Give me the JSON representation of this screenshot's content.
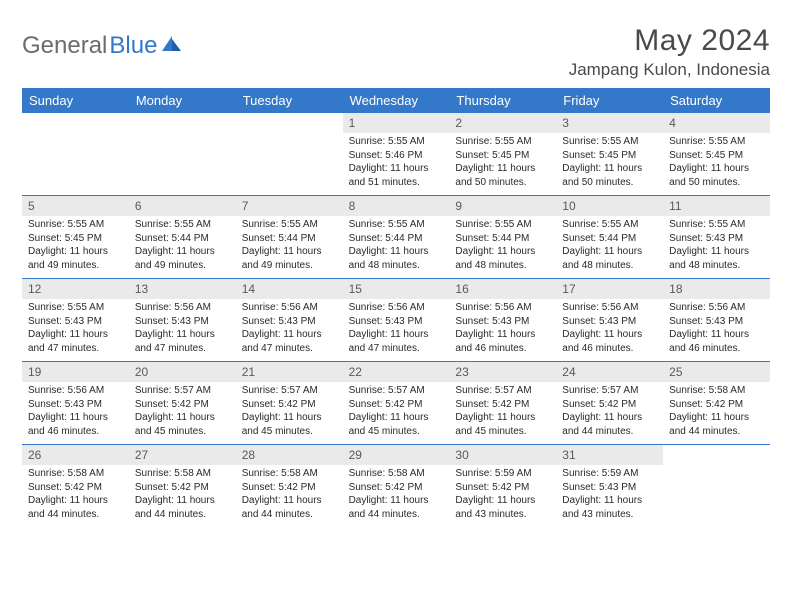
{
  "brand": {
    "word1": "General",
    "word2": "Blue"
  },
  "title": "May 2024",
  "location": "Jampang Kulon, Indonesia",
  "colors": {
    "header_bg": "#3478c9",
    "header_text": "#ffffff",
    "daynum_bg": "#eaeaea",
    "daynum_text": "#5a5a5a",
    "border": "#3478c9",
    "body_text": "#2a2a2a",
    "title_text": "#4a4a4a",
    "logo_gray": "#6b6b6b",
    "logo_blue": "#3478c9",
    "background": "#ffffff"
  },
  "typography": {
    "month_title_fontsize": 30,
    "location_fontsize": 17,
    "day_header_fontsize": 13,
    "daynum_fontsize": 12,
    "detail_fontsize": 10,
    "logo_fontsize": 24
  },
  "dayNames": [
    "Sunday",
    "Monday",
    "Tuesday",
    "Wednesday",
    "Thursday",
    "Friday",
    "Saturday"
  ],
  "weeks": [
    [
      {
        "empty": true
      },
      {
        "empty": true
      },
      {
        "empty": true
      },
      {
        "day": "1",
        "sunrise": "Sunrise: 5:55 AM",
        "sunset": "Sunset: 5:46 PM",
        "daylight": "Daylight: 11 hours and 51 minutes."
      },
      {
        "day": "2",
        "sunrise": "Sunrise: 5:55 AM",
        "sunset": "Sunset: 5:45 PM",
        "daylight": "Daylight: 11 hours and 50 minutes."
      },
      {
        "day": "3",
        "sunrise": "Sunrise: 5:55 AM",
        "sunset": "Sunset: 5:45 PM",
        "daylight": "Daylight: 11 hours and 50 minutes."
      },
      {
        "day": "4",
        "sunrise": "Sunrise: 5:55 AM",
        "sunset": "Sunset: 5:45 PM",
        "daylight": "Daylight: 11 hours and 50 minutes."
      }
    ],
    [
      {
        "day": "5",
        "sunrise": "Sunrise: 5:55 AM",
        "sunset": "Sunset: 5:45 PM",
        "daylight": "Daylight: 11 hours and 49 minutes."
      },
      {
        "day": "6",
        "sunrise": "Sunrise: 5:55 AM",
        "sunset": "Sunset: 5:44 PM",
        "daylight": "Daylight: 11 hours and 49 minutes."
      },
      {
        "day": "7",
        "sunrise": "Sunrise: 5:55 AM",
        "sunset": "Sunset: 5:44 PM",
        "daylight": "Daylight: 11 hours and 49 minutes."
      },
      {
        "day": "8",
        "sunrise": "Sunrise: 5:55 AM",
        "sunset": "Sunset: 5:44 PM",
        "daylight": "Daylight: 11 hours and 48 minutes."
      },
      {
        "day": "9",
        "sunrise": "Sunrise: 5:55 AM",
        "sunset": "Sunset: 5:44 PM",
        "daylight": "Daylight: 11 hours and 48 minutes."
      },
      {
        "day": "10",
        "sunrise": "Sunrise: 5:55 AM",
        "sunset": "Sunset: 5:44 PM",
        "daylight": "Daylight: 11 hours and 48 minutes."
      },
      {
        "day": "11",
        "sunrise": "Sunrise: 5:55 AM",
        "sunset": "Sunset: 5:43 PM",
        "daylight": "Daylight: 11 hours and 48 minutes."
      }
    ],
    [
      {
        "day": "12",
        "sunrise": "Sunrise: 5:55 AM",
        "sunset": "Sunset: 5:43 PM",
        "daylight": "Daylight: 11 hours and 47 minutes."
      },
      {
        "day": "13",
        "sunrise": "Sunrise: 5:56 AM",
        "sunset": "Sunset: 5:43 PM",
        "daylight": "Daylight: 11 hours and 47 minutes."
      },
      {
        "day": "14",
        "sunrise": "Sunrise: 5:56 AM",
        "sunset": "Sunset: 5:43 PM",
        "daylight": "Daylight: 11 hours and 47 minutes."
      },
      {
        "day": "15",
        "sunrise": "Sunrise: 5:56 AM",
        "sunset": "Sunset: 5:43 PM",
        "daylight": "Daylight: 11 hours and 47 minutes."
      },
      {
        "day": "16",
        "sunrise": "Sunrise: 5:56 AM",
        "sunset": "Sunset: 5:43 PM",
        "daylight": "Daylight: 11 hours and 46 minutes."
      },
      {
        "day": "17",
        "sunrise": "Sunrise: 5:56 AM",
        "sunset": "Sunset: 5:43 PM",
        "daylight": "Daylight: 11 hours and 46 minutes."
      },
      {
        "day": "18",
        "sunrise": "Sunrise: 5:56 AM",
        "sunset": "Sunset: 5:43 PM",
        "daylight": "Daylight: 11 hours and 46 minutes."
      }
    ],
    [
      {
        "day": "19",
        "sunrise": "Sunrise: 5:56 AM",
        "sunset": "Sunset: 5:43 PM",
        "daylight": "Daylight: 11 hours and 46 minutes."
      },
      {
        "day": "20",
        "sunrise": "Sunrise: 5:57 AM",
        "sunset": "Sunset: 5:42 PM",
        "daylight": "Daylight: 11 hours and 45 minutes."
      },
      {
        "day": "21",
        "sunrise": "Sunrise: 5:57 AM",
        "sunset": "Sunset: 5:42 PM",
        "daylight": "Daylight: 11 hours and 45 minutes."
      },
      {
        "day": "22",
        "sunrise": "Sunrise: 5:57 AM",
        "sunset": "Sunset: 5:42 PM",
        "daylight": "Daylight: 11 hours and 45 minutes."
      },
      {
        "day": "23",
        "sunrise": "Sunrise: 5:57 AM",
        "sunset": "Sunset: 5:42 PM",
        "daylight": "Daylight: 11 hours and 45 minutes."
      },
      {
        "day": "24",
        "sunrise": "Sunrise: 5:57 AM",
        "sunset": "Sunset: 5:42 PM",
        "daylight": "Daylight: 11 hours and 44 minutes."
      },
      {
        "day": "25",
        "sunrise": "Sunrise: 5:58 AM",
        "sunset": "Sunset: 5:42 PM",
        "daylight": "Daylight: 11 hours and 44 minutes."
      }
    ],
    [
      {
        "day": "26",
        "sunrise": "Sunrise: 5:58 AM",
        "sunset": "Sunset: 5:42 PM",
        "daylight": "Daylight: 11 hours and 44 minutes."
      },
      {
        "day": "27",
        "sunrise": "Sunrise: 5:58 AM",
        "sunset": "Sunset: 5:42 PM",
        "daylight": "Daylight: 11 hours and 44 minutes."
      },
      {
        "day": "28",
        "sunrise": "Sunrise: 5:58 AM",
        "sunset": "Sunset: 5:42 PM",
        "daylight": "Daylight: 11 hours and 44 minutes."
      },
      {
        "day": "29",
        "sunrise": "Sunrise: 5:58 AM",
        "sunset": "Sunset: 5:42 PM",
        "daylight": "Daylight: 11 hours and 44 minutes."
      },
      {
        "day": "30",
        "sunrise": "Sunrise: 5:59 AM",
        "sunset": "Sunset: 5:42 PM",
        "daylight": "Daylight: 11 hours and 43 minutes."
      },
      {
        "day": "31",
        "sunrise": "Sunrise: 5:59 AM",
        "sunset": "Sunset: 5:43 PM",
        "daylight": "Daylight: 11 hours and 43 minutes."
      },
      {
        "empty": true
      }
    ]
  ]
}
